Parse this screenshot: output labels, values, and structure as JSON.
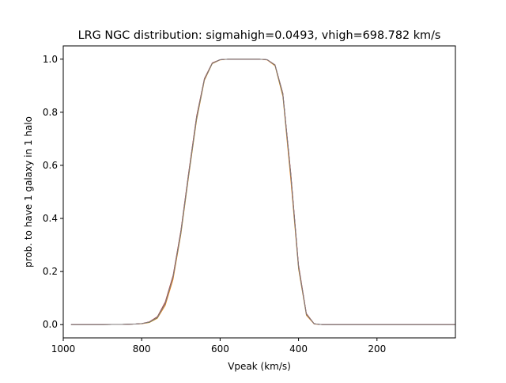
{
  "chart_data": {
    "type": "line",
    "title": "LRG NGC distribution: sigmahigh=0.0493, vhigh=698.782 km/s",
    "xlabel": "Vpeak (km/s)",
    "ylabel": "prob. to have 1 galaxy in 1 halo",
    "xlim": [
      1000,
      0
    ],
    "ylim": [
      -0.05,
      1.05
    ],
    "x_ticks": [
      1000,
      800,
      600,
      400,
      200
    ],
    "y_ticks": [
      0.0,
      0.2,
      0.4,
      0.6,
      0.8,
      1.0
    ],
    "x_tick_labels": [
      "1000",
      "800",
      "600",
      "400",
      "200"
    ],
    "y_tick_labels": [
      "0.0",
      "0.2",
      "0.4",
      "0.6",
      "0.8",
      "1.0"
    ],
    "grid": false,
    "series": [
      {
        "color": "#1f77b4",
        "x": [
          980,
          900,
          850,
          820,
          800,
          780,
          760,
          740,
          720,
          700,
          680,
          660,
          640,
          620,
          600,
          580,
          560,
          540,
          520,
          500,
          480,
          460,
          440,
          420,
          400,
          380,
          360,
          340,
          320,
          300,
          250,
          200,
          150,
          100,
          50,
          0
        ],
        "y": [
          0.0,
          0.0,
          0.001,
          0.002,
          0.004,
          0.01,
          0.028,
          0.08,
          0.18,
          0.35,
          0.57,
          0.78,
          0.925,
          0.985,
          0.998,
          1.0,
          1.0,
          1.0,
          1.0,
          1.0,
          0.998,
          0.978,
          0.87,
          0.57,
          0.22,
          0.04,
          0.003,
          0.0,
          0.0,
          0.0,
          0.0,
          0.0,
          0.0,
          0.0,
          0.0,
          0.0
        ]
      },
      {
        "color": "#ff7f0e",
        "x": [
          980,
          900,
          850,
          820,
          800,
          780,
          760,
          740,
          720,
          700,
          680,
          660,
          640,
          620,
          600,
          580,
          560,
          540,
          520,
          500,
          480,
          460,
          440,
          420,
          400,
          380,
          360,
          340,
          320,
          300,
          250,
          200,
          150,
          100,
          50,
          0
        ],
        "y": [
          0.0,
          0.0,
          0.001,
          0.002,
          0.003,
          0.008,
          0.024,
          0.072,
          0.17,
          0.34,
          0.56,
          0.77,
          0.92,
          0.983,
          0.997,
          1.0,
          1.0,
          1.0,
          1.0,
          1.0,
          0.997,
          0.975,
          0.86,
          0.55,
          0.21,
          0.035,
          0.002,
          0.0,
          0.0,
          0.0,
          0.0,
          0.0,
          0.0,
          0.0,
          0.0,
          0.0
        ]
      },
      {
        "color": "#2ca02c",
        "x": [
          980,
          900,
          850,
          820,
          800,
          780,
          760,
          740,
          720,
          700,
          680,
          660,
          640,
          620,
          600,
          580,
          560,
          540,
          520,
          500,
          480,
          460,
          440,
          420,
          400,
          380,
          360,
          340,
          320,
          300,
          250,
          200,
          150,
          100,
          50,
          0
        ],
        "y": [
          0.0,
          0.0,
          0.001,
          0.002,
          0.004,
          0.009,
          0.026,
          0.078,
          0.178,
          0.345,
          0.565,
          0.775,
          0.923,
          0.984,
          0.998,
          1.0,
          1.0,
          1.0,
          1.0,
          1.0,
          0.998,
          0.977,
          0.865,
          0.565,
          0.215,
          0.038,
          0.003,
          0.0,
          0.0,
          0.0,
          0.0,
          0.0,
          0.0,
          0.0,
          0.0,
          0.0
        ]
      },
      {
        "color": "#d62728",
        "x": [
          980,
          900,
          850,
          820,
          800,
          780,
          760,
          740,
          720,
          700,
          680,
          660,
          640,
          620,
          600,
          580,
          560,
          540,
          520,
          500,
          480,
          460,
          440,
          420,
          400,
          380,
          360,
          340,
          320,
          300,
          250,
          200,
          150,
          100,
          50,
          0
        ],
        "y": [
          0.0,
          0.0,
          0.001,
          0.002,
          0.004,
          0.011,
          0.03,
          0.085,
          0.185,
          0.355,
          0.575,
          0.785,
          0.927,
          0.986,
          0.998,
          1.0,
          1.0,
          1.0,
          1.0,
          1.0,
          0.998,
          0.979,
          0.872,
          0.575,
          0.225,
          0.042,
          0.003,
          0.0,
          0.0,
          0.0,
          0.0,
          0.0,
          0.0,
          0.0,
          0.0,
          0.0
        ]
      },
      {
        "color": "#9467bd",
        "x": [
          980,
          900,
          850,
          820,
          800,
          780,
          760,
          740,
          720,
          700,
          680,
          660,
          640,
          620,
          600,
          580,
          560,
          540,
          520,
          500,
          480,
          460,
          440,
          420,
          400,
          380,
          360,
          340,
          320,
          300,
          250,
          200,
          150,
          100,
          50,
          0
        ],
        "y": [
          0.0,
          0.0,
          0.001,
          0.002,
          0.004,
          0.01,
          0.027,
          0.079,
          0.179,
          0.348,
          0.568,
          0.778,
          0.924,
          0.985,
          0.998,
          1.0,
          1.0,
          1.0,
          1.0,
          1.0,
          0.998,
          0.978,
          0.868,
          0.568,
          0.218,
          0.039,
          0.003,
          0.0,
          0.0,
          0.0,
          0.0,
          0.0,
          0.0,
          0.0,
          0.0,
          0.0
        ]
      },
      {
        "color": "#8c564b",
        "x": [
          980,
          900,
          850,
          820,
          800,
          780,
          760,
          740,
          720,
          700,
          680,
          660,
          640,
          620,
          600,
          580,
          560,
          540,
          520,
          500,
          480,
          460,
          440,
          420,
          400,
          380,
          360,
          340,
          320,
          300,
          250,
          200,
          150,
          100,
          50,
          0
        ],
        "y": [
          0.0,
          0.0,
          0.001,
          0.002,
          0.004,
          0.01,
          0.029,
          0.082,
          0.182,
          0.352,
          0.572,
          0.782,
          0.926,
          0.985,
          0.998,
          1.0,
          1.0,
          1.0,
          1.0,
          1.0,
          0.998,
          0.978,
          0.869,
          0.57,
          0.22,
          0.04,
          0.003,
          0.0,
          0.0,
          0.0,
          0.0,
          0.0,
          0.0,
          0.0,
          0.0,
          0.0
        ]
      },
      {
        "color": "#7f7f7f",
        "x": [
          980,
          900,
          850,
          820,
          800,
          780,
          760,
          740,
          720,
          700,
          680,
          660,
          640,
          620,
          600,
          580,
          560,
          540,
          520,
          500,
          480,
          460,
          440,
          420,
          400,
          380,
          360,
          340,
          320,
          300,
          250,
          200,
          150,
          100,
          50,
          0
        ],
        "y": [
          0.0,
          0.0,
          0.001,
          0.002,
          0.004,
          0.01,
          0.028,
          0.08,
          0.18,
          0.35,
          0.57,
          0.78,
          0.925,
          0.985,
          0.998,
          1.0,
          1.0,
          1.0,
          1.0,
          1.0,
          0.998,
          0.978,
          0.87,
          0.57,
          0.22,
          0.04,
          0.003,
          0.0,
          0.0,
          0.0,
          0.0,
          0.0,
          0.0,
          0.0,
          0.0,
          0.0
        ]
      }
    ]
  }
}
